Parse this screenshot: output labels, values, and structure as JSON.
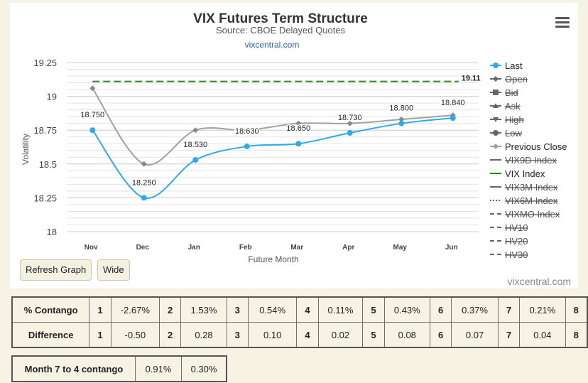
{
  "chart_data": {
    "type": "line",
    "title": "VIX Futures Term Structure",
    "subtitle": "Source: CBOE Delayed Quotes",
    "link": "vixcentral.com",
    "credits": "vixcentral.com",
    "xlabel": "Future Month",
    "ylabel": "Volatility",
    "categories": [
      "Nov",
      "Dec",
      "Jan",
      "Feb",
      "Mar",
      "Apr",
      "May",
      "Jun"
    ],
    "ylim": [
      18,
      19.25
    ],
    "yticks": [
      18,
      18.25,
      18.5,
      18.75,
      19,
      19.25
    ],
    "ytick_labels": [
      "18",
      "18.25",
      "18.5",
      "18.75",
      "19",
      "19.25"
    ],
    "grid": true,
    "legend_position": "right",
    "series": [
      {
        "name": "Last",
        "values": [
          18.75,
          18.25,
          18.53,
          18.63,
          18.65,
          18.73,
          18.8,
          18.84
        ],
        "labels": [
          "18.750",
          "18.250",
          "18.530",
          "18.630",
          "18.650",
          "18.730",
          "18.800",
          "18.840"
        ],
        "color": "#2fa8ec"
      },
      {
        "name": "Previous Close",
        "values": [
          19.06,
          18.5,
          18.75,
          18.75,
          18.8,
          18.8,
          18.83,
          18.86
        ],
        "color": "#a0a0a0"
      },
      {
        "name": "VIX Index",
        "values": [
          19.11,
          19.11,
          19.11,
          19.11,
          19.11,
          19.11,
          19.11,
          19.11
        ],
        "end_label": "19.11",
        "color": "#2e8b1f"
      }
    ],
    "legend": [
      {
        "name": "Last",
        "symbol": "circle-line",
        "color": "#2fa8ec",
        "active": true
      },
      {
        "name": "Open",
        "symbol": "diamond-line",
        "color": "#555555",
        "active": false
      },
      {
        "name": "Bid",
        "symbol": "square-line",
        "color": "#555555",
        "active": false
      },
      {
        "name": "Ask",
        "symbol": "triangle-line",
        "color": "#555555",
        "active": false
      },
      {
        "name": "High",
        "symbol": "triangle-down-line",
        "color": "#555555",
        "active": false
      },
      {
        "name": "Low",
        "symbol": "circle-line",
        "color": "#555555",
        "active": false
      },
      {
        "name": "Previous Close",
        "symbol": "diamond-line",
        "color": "#a0a0a0",
        "active": true
      },
      {
        "name": "VIX9D Index",
        "symbol": "line",
        "color": "#666666",
        "active": false
      },
      {
        "name": "VIX Index",
        "symbol": "line",
        "color": "#2e8b1f",
        "active": true
      },
      {
        "name": "VIX3M Index",
        "symbol": "line",
        "color": "#666666",
        "active": false
      },
      {
        "name": "VIX6M Index",
        "symbol": "dotted",
        "color": "#555555",
        "active": false
      },
      {
        "name": "VIXMO Index",
        "symbol": "dashed",
        "color": "#555555",
        "active": false
      },
      {
        "name": "HV10",
        "symbol": "dashed",
        "color": "#555555",
        "active": false
      },
      {
        "name": "HV20",
        "symbol": "dashed",
        "color": "#555555",
        "active": false
      },
      {
        "name": "HV30",
        "symbol": "dashed",
        "color": "#555555",
        "active": false
      }
    ]
  },
  "buttons": {
    "refresh": "Refresh Graph",
    "wide": "Wide"
  },
  "contango_table": {
    "rows": [
      {
        "label": "% Contango",
        "cells": [
          "1",
          "-2.67%",
          "2",
          "1.53%",
          "3",
          "0.54%",
          "4",
          "0.11%",
          "5",
          "0.43%",
          "6",
          "0.37%",
          "7",
          "0.21%",
          "8"
        ]
      },
      {
        "label": "Difference",
        "cells": [
          "1",
          "-0.50",
          "2",
          "0.28",
          "3",
          "0.10",
          "4",
          "0.02",
          "5",
          "0.08",
          "6",
          "0.07",
          "7",
          "0.04",
          "8"
        ]
      }
    ]
  },
  "month_table": {
    "label": "Month 7 to 4 contango",
    "values": [
      "0.91%",
      "0.30%"
    ]
  }
}
